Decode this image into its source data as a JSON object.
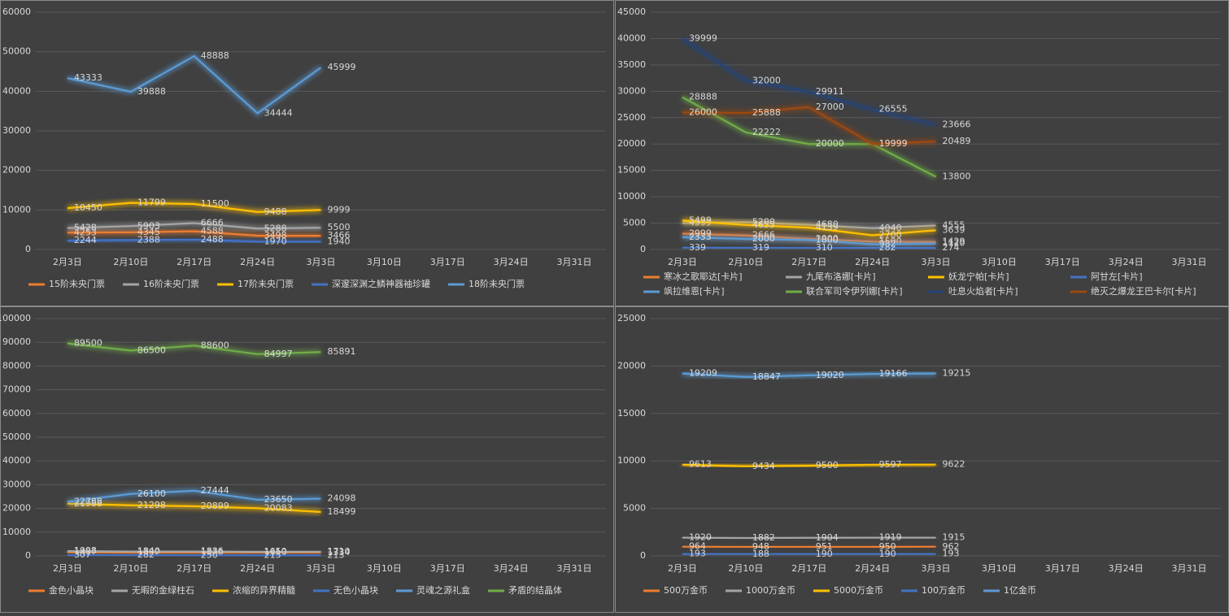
{
  "chart_data": [
    {
      "type": "line",
      "categories": [
        "2月3日",
        "2月10日",
        "2月17日",
        "2月24日",
        "3月3日",
        "3月10日",
        "3月17日",
        "3月24日",
        "3月31日"
      ],
      "ylim": [
        0,
        60000
      ],
      "yticks": [
        0,
        10000,
        20000,
        30000,
        40000,
        50000,
        60000
      ],
      "legend": "bottom",
      "series": [
        {
          "name": "15阶未央门票",
          "color": "#ed7d31",
          "values": [
            4253,
            4345,
            4588,
            3498,
            3466,
            null,
            null,
            null,
            null
          ]
        },
        {
          "name": "16阶未央门票",
          "color": "#a5a5a5",
          "values": [
            5428,
            5903,
            6666,
            5288,
            5500,
            null,
            null,
            null,
            null
          ]
        },
        {
          "name": "17阶未央门票",
          "color": "#ffc000",
          "values": [
            10450,
            11799,
            11500,
            9488,
            9999,
            null,
            null,
            null,
            null
          ]
        },
        {
          "name": "深邃深渊之鳞神器袖珍罐",
          "color": "#4472c4",
          "values": [
            2244,
            2388,
            2488,
            1970,
            1940,
            null,
            null,
            null,
            null
          ]
        },
        {
          "name": "18阶未央门票",
          "color": "#5b9bd5",
          "values": [
            43333,
            39888,
            48888,
            34444,
            45999,
            null,
            null,
            null,
            null
          ]
        }
      ]
    },
    {
      "type": "line",
      "categories": [
        "2月3日",
        "2月10日",
        "2月17日",
        "2月24日",
        "3月3日",
        "3月10日",
        "3月17日",
        "3月24日",
        "3月31日"
      ],
      "ylim": [
        0,
        45000
      ],
      "yticks": [
        0,
        5000,
        10000,
        15000,
        20000,
        25000,
        30000,
        35000,
        40000,
        45000
      ],
      "legend": "bottom",
      "series": [
        {
          "name": "寒冰之歌耶达[卡片]",
          "color": "#ed7d31",
          "values": [
            2999,
            2666,
            2000,
            1500,
            1429,
            null,
            null,
            null,
            null
          ]
        },
        {
          "name": "九尾布洛娜[卡片]",
          "color": "#a5a5a5",
          "values": [
            4999,
            5200,
            4680,
            4040,
            4555,
            null,
            null,
            null,
            null
          ]
        },
        {
          "name": "妖龙宁帕[卡片]",
          "color": "#ffc000",
          "values": [
            5499,
            4655,
            4139,
            2700,
            3639,
            null,
            null,
            null,
            null
          ]
        },
        {
          "name": "阿甘左[卡片]",
          "color": "#4472c4",
          "values": [
            339,
            319,
            310,
            282,
            274,
            null,
            null,
            null,
            null
          ]
        },
        {
          "name": "飒拉维恩[卡片]",
          "color": "#5b9bd5",
          "values": [
            2333,
            2000,
            1800,
            982,
            1120,
            null,
            null,
            null,
            null
          ]
        },
        {
          "name": "联合军司令伊列娜[卡片]",
          "color": "#70ad47",
          "values": [
            28888,
            22222,
            20000,
            19999,
            13800,
            null,
            null,
            null,
            null
          ]
        },
        {
          "name": "吐息火焰者[卡片]",
          "color": "#264478",
          "values": [
            39999,
            32000,
            29911,
            26555,
            23666,
            null,
            null,
            null,
            null
          ]
        },
        {
          "name": "绝灭之爆龙王巴卡尔[卡片]",
          "color": "#9e480e",
          "values": [
            26000,
            25888,
            27000,
            19999,
            20489,
            null,
            null,
            null,
            null
          ]
        }
      ]
    },
    {
      "type": "line",
      "categories": [
        "2月3日",
        "2月10日",
        "2月17日",
        "2月24日",
        "3月3日",
        "3月10日",
        "3月17日",
        "3月24日",
        "3月31日"
      ],
      "ylim": [
        0,
        100000
      ],
      "yticks": [
        0,
        10000,
        20000,
        30000,
        40000,
        50000,
        60000,
        70000,
        80000,
        90000,
        100000
      ],
      "legend": "bottom",
      "series": [
        {
          "name": "金色小晶块",
          "color": "#ed7d31",
          "values": [
            1467,
            1322,
            1320,
            1313,
            1334,
            null,
            null,
            null,
            null
          ]
        },
        {
          "name": "无暇的金绿柱石",
          "color": "#a5a5a5",
          "values": [
            1998,
            1840,
            1836,
            1650,
            1710,
            null,
            null,
            null,
            null
          ]
        },
        {
          "name": "浓缩的异界精髓",
          "color": "#ffc000",
          "values": [
            21988,
            21298,
            20899,
            20083,
            18499,
            null,
            null,
            null,
            null
          ]
        },
        {
          "name": "无色小晶块",
          "color": "#4472c4",
          "values": [
            307,
            282,
            250,
            215,
            213,
            null,
            null,
            null,
            null
          ]
        },
        {
          "name": "灵魂之源礼盒",
          "color": "#5b9bd5",
          "values": [
            22788,
            26100,
            27444,
            23650,
            24098,
            null,
            null,
            null,
            null
          ]
        },
        {
          "name": "矛盾的结晶体",
          "color": "#70ad47",
          "values": [
            89500,
            86500,
            88600,
            84997,
            85891,
            null,
            null,
            null,
            null
          ]
        }
      ]
    },
    {
      "type": "line",
      "categories": [
        "2月3日",
        "2月10日",
        "2月17日",
        "2月24日",
        "3月3日",
        "3月10日",
        "3月17日",
        "3月24日",
        "3月31日"
      ],
      "ylim": [
        0,
        25000
      ],
      "yticks": [
        0,
        5000,
        10000,
        15000,
        20000,
        25000
      ],
      "legend": "bottom",
      "series": [
        {
          "name": "500万金币",
          "color": "#ed7d31",
          "values": [
            964,
            948,
            951,
            950,
            962,
            null,
            null,
            null,
            null
          ]
        },
        {
          "name": "1000万金币",
          "color": "#a5a5a5",
          "values": [
            1920,
            1882,
            1904,
            1919,
            1915,
            null,
            null,
            null,
            null
          ]
        },
        {
          "name": "5000万金币",
          "color": "#ffc000",
          "values": [
            9613,
            9434,
            9500,
            9597,
            9622,
            null,
            null,
            null,
            null
          ]
        },
        {
          "name": "100万金币",
          "color": "#4472c4",
          "values": [
            193,
            188,
            190,
            190,
            193,
            null,
            null,
            null,
            null
          ]
        },
        {
          "name": "1亿金币",
          "color": "#5b9bd5",
          "values": [
            19209,
            18847,
            19020,
            19166,
            19215,
            null,
            null,
            null,
            null
          ]
        }
      ]
    }
  ]
}
